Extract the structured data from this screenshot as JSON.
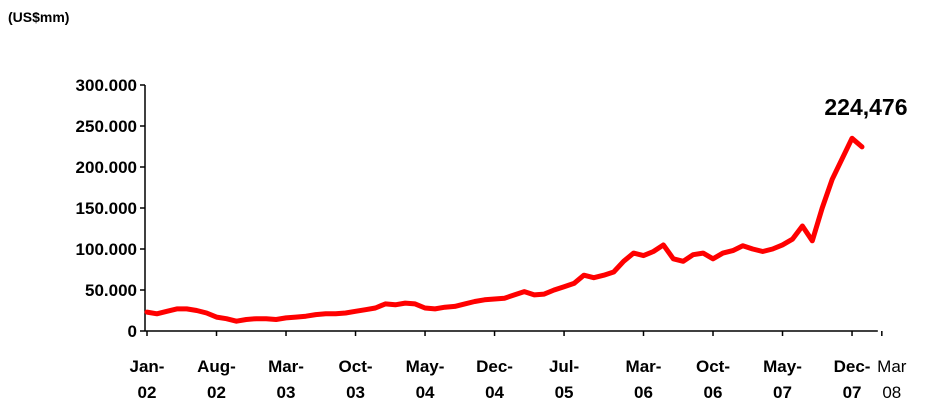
{
  "chart_data": {
    "type": "line",
    "y_label": "(US$mm)",
    "annotation": "224,476",
    "x": [
      "Jan-02",
      "Feb-02",
      "Mar-02",
      "Apr-02",
      "May-02",
      "Jun-02",
      "Jul-02",
      "Aug-02",
      "Sep-02",
      "Oct-02",
      "Nov-02",
      "Dec-02",
      "Jan-03",
      "Feb-03",
      "Mar-03",
      "Apr-03",
      "May-03",
      "Jun-03",
      "Jul-03",
      "Aug-03",
      "Sep-03",
      "Oct-03",
      "Nov-03",
      "Dec-03",
      "Jan-04",
      "Feb-04",
      "Mar-04",
      "Apr-04",
      "May-04",
      "Jun-04",
      "Jul-04",
      "Aug-04",
      "Sep-04",
      "Oct-04",
      "Nov-04",
      "Dec-04",
      "Jan-05",
      "Feb-05",
      "Mar-05",
      "Apr-05",
      "May-05",
      "Jun-05",
      "Jul-05",
      "Aug-05",
      "Sep-05",
      "Oct-05",
      "Nov-05",
      "Dec-05",
      "Jan-06",
      "Feb-06",
      "Mar-06",
      "Apr-06",
      "May-06",
      "Jun-06",
      "Jul-06",
      "Aug-06",
      "Sep-06",
      "Oct-06",
      "Nov-06",
      "Dec-06",
      "Jan-07",
      "Feb-07",
      "Mar-07",
      "Apr-07",
      "May-07",
      "Jun-07",
      "Jul-07",
      "Aug-07",
      "Sep-07",
      "Oct-07",
      "Nov-07",
      "Dec-07",
      "Jan-08",
      "Feb-08",
      "Mar-08"
    ],
    "categories": [
      [
        "Jan-",
        "02"
      ],
      [
        "Aug-",
        "02"
      ],
      [
        "Mar-",
        "03"
      ],
      [
        "Oct-",
        "03"
      ],
      [
        "May-",
        "04"
      ],
      [
        "Dec-",
        "04"
      ],
      [
        "Jul-",
        "05"
      ],
      [
        "Mar-",
        "06"
      ],
      [
        "Oct-",
        "06"
      ],
      [
        "May-",
        "07"
      ],
      [
        "Dec-",
        "07"
      ],
      [
        "Mar",
        "08"
      ]
    ],
    "series": [
      {
        "color": "#ff0000",
        "values": [
          23000,
          21000,
          24000,
          27000,
          27000,
          25000,
          22000,
          17000,
          15000,
          12000,
          14000,
          15000,
          15000,
          14000,
          16000,
          17000,
          18000,
          20000,
          21000,
          21000,
          22000,
          24000,
          26000,
          28000,
          33000,
          32000,
          34000,
          33000,
          28000,
          27000,
          29000,
          30000,
          33000,
          36000,
          38000,
          39000,
          40000,
          44000,
          48000,
          44000,
          45000,
          50000,
          54000,
          58000,
          68000,
          65000,
          68000,
          72000,
          85000,
          95000,
          92000,
          97000,
          105000,
          88000,
          85000,
          93000,
          95000,
          88000,
          95000,
          98000,
          104000,
          100000,
          97000,
          100000,
          105000,
          112000,
          128000,
          110000,
          150000,
          185000,
          210000,
          235000,
          224476,
          null,
          null
        ]
      }
    ],
    "ylim": [
      0,
      300000
    ],
    "yticks": [
      0,
      {
        "value": 50000,
        "label": "50.000"
      },
      {
        "value": 100000,
        "label": "100.000"
      },
      {
        "value": 150000,
        "label": "150.000"
      },
      {
        "value": 200000,
        "label": "200.000"
      },
      {
        "value": 250000,
        "label": "250.000"
      },
      {
        "value": 300000,
        "label": "300.000"
      }
    ]
  }
}
